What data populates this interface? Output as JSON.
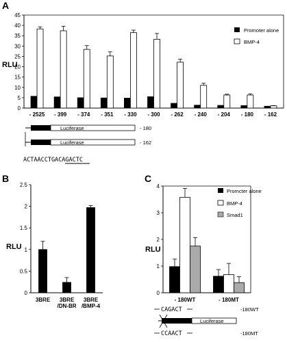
{
  "panels": {
    "A": "A",
    "B": "B",
    "C": "C"
  },
  "chart_data": [
    {
      "type": "bar",
      "panel": "A",
      "ylabel": "RLU",
      "ylim": [
        0,
        45
      ],
      "yticks": [
        0,
        5,
        10,
        15,
        20,
        25,
        30,
        35,
        40,
        45
      ],
      "categories": [
        "- 2525",
        "- 399",
        "- 374",
        "- 351",
        "- 330",
        "- 300",
        "- 262",
        "- 240",
        "- 204",
        "- 180",
        "- 162"
      ],
      "series": [
        {
          "name": "Promoter alone",
          "color": "#000000",
          "values": [
            5.7,
            5.4,
            5.0,
            4.9,
            4.8,
            5.5,
            2.3,
            1.4,
            1.3,
            1.2,
            0.9
          ],
          "errors": [
            0.0,
            0.0,
            0.0,
            0.0,
            0.0,
            0.0,
            0.0,
            0.0,
            0.0,
            0.0,
            0.0
          ]
        },
        {
          "name": "BMP-4",
          "color": "#ffffff",
          "values": [
            38.3,
            37.4,
            28.4,
            25.2,
            36.5,
            33.3,
            22.2,
            11.0,
            6.3,
            6.3,
            1.1
          ],
          "errors": [
            1.0,
            2.2,
            1.8,
            2.0,
            1.2,
            2.8,
            1.5,
            1.0,
            0.4,
            0.6,
            0.1
          ]
        }
      ],
      "legend_position": "top-right"
    },
    {
      "type": "bar",
      "panel": "B",
      "ylabel": "RLU",
      "ylim": [
        0,
        2.5
      ],
      "yticks": [
        0,
        0.5,
        1,
        1.5,
        2,
        2.5
      ],
      "ytick_labels": [
        "0",
        "0.5",
        "1",
        "1.5",
        "2",
        "2.5"
      ],
      "categories": [
        "3BRE",
        "3BRE /DN-BR",
        "3BRE /BMP-4"
      ],
      "category_lines": [
        [
          "3BRE"
        ],
        [
          "3BRE",
          "/DN-BR"
        ],
        [
          "3BRE",
          "/BMP-4"
        ]
      ],
      "series": [
        {
          "name": "",
          "color": "#000000",
          "values": [
            1.0,
            0.24,
            1.97
          ],
          "errors": [
            0.19,
            0.11,
            0.05
          ]
        }
      ]
    },
    {
      "type": "bar",
      "panel": "C",
      "ylabel": "RLU",
      "ylim": [
        0,
        4
      ],
      "yticks": [
        0,
        1,
        2,
        3,
        4
      ],
      "categories": [
        "- 180WT",
        "- 180MT"
      ],
      "series": [
        {
          "name": "Promcter alone",
          "color": "#000000",
          "values": [
            0.98,
            0.62
          ],
          "errors": [
            0.28,
            0.25
          ]
        },
        {
          "name": "BMP-4",
          "color": "#ffffff",
          "values": [
            3.58,
            0.68
          ],
          "errors": [
            0.33,
            0.42
          ]
        },
        {
          "name": "Smad1",
          "color": "#aaaaaa",
          "values": [
            1.75,
            0.38
          ],
          "errors": [
            0.32,
            0.22
          ]
        }
      ],
      "legend_position": "top-right"
    }
  ],
  "constructs_A": {
    "label_180": "- 180",
    "label_162": "- 162",
    "luciferase": "Luciferase",
    "sequence_prefix": "ACTAACCTGA",
    "sequence_motif": "CAGACTC"
  },
  "constructs_C": {
    "wt_seq": "CAGACT",
    "mt_seq": "CCAACT",
    "luciferase": "Luciferase",
    "label_wt": "-180WT",
    "label_mt": "-180MT"
  }
}
